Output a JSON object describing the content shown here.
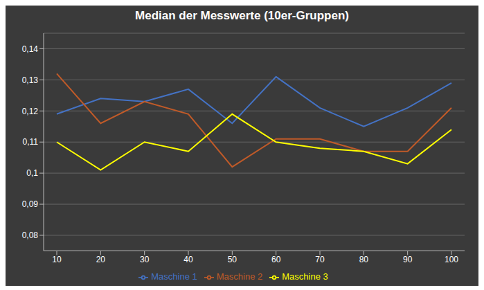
{
  "chart_data": {
    "type": "line",
    "title": "Median der Messwerte (10er-Gruppen)",
    "x": [
      10,
      20,
      30,
      40,
      50,
      60,
      70,
      80,
      90,
      100
    ],
    "series": [
      {
        "name": "Maschine 1",
        "color": "#4472C4",
        "values": [
          0.119,
          0.124,
          0.123,
          0.127,
          0.116,
          0.131,
          0.121,
          0.115,
          0.121,
          0.129
        ]
      },
      {
        "name": "Maschine 2",
        "color": "#C05A28",
        "values": [
          0.132,
          0.116,
          0.123,
          0.119,
          0.102,
          0.111,
          0.111,
          0.107,
          0.107,
          0.121
        ]
      },
      {
        "name": "Maschine 3",
        "color": "#FFFF00",
        "values": [
          0.11,
          0.101,
          0.11,
          0.107,
          0.119,
          0.11,
          0.108,
          0.107,
          0.103,
          0.114
        ]
      }
    ],
    "xlim": [
      7,
      103
    ],
    "xticks": [
      10,
      20,
      30,
      40,
      50,
      60,
      70,
      80,
      90,
      100
    ],
    "ylim": [
      0.075,
      0.145
    ],
    "yticks": [
      {
        "value": 0.08,
        "label": "0,08"
      },
      {
        "value": 0.09,
        "label": "0,09"
      },
      {
        "value": 0.1,
        "label": "0,1"
      },
      {
        "value": 0.11,
        "label": "0,11"
      },
      {
        "value": 0.12,
        "label": "0,12"
      },
      {
        "value": 0.13,
        "label": "0,13"
      },
      {
        "value": 0.14,
        "label": "0,14"
      }
    ],
    "grid": true,
    "legend": "bottom"
  }
}
